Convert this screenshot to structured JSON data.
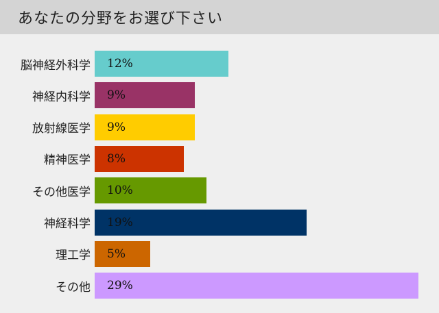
{
  "header": {
    "title": "あなたの分野をお選び下さい"
  },
  "chart_data": {
    "type": "bar",
    "orientation": "horizontal",
    "title": "",
    "xlabel": "",
    "ylabel": "",
    "xlim": [
      0,
      29
    ],
    "grid": false,
    "categories": [
      "脳神経外科学",
      "神経内科学",
      "放射線医学",
      "精神医学",
      "その他医学",
      "神経科学",
      "理工学",
      "その他"
    ],
    "values": [
      12,
      9,
      9,
      8,
      10,
      19,
      5,
      29
    ],
    "value_labels": [
      "12%",
      "9%",
      "9%",
      "8%",
      "10%",
      "19%",
      "5%",
      "29%"
    ],
    "colors": [
      "#66cccc",
      "#993366",
      "#ffcc00",
      "#cc3300",
      "#669900",
      "#003366",
      "#cc6600",
      "#cc99ff"
    ]
  }
}
